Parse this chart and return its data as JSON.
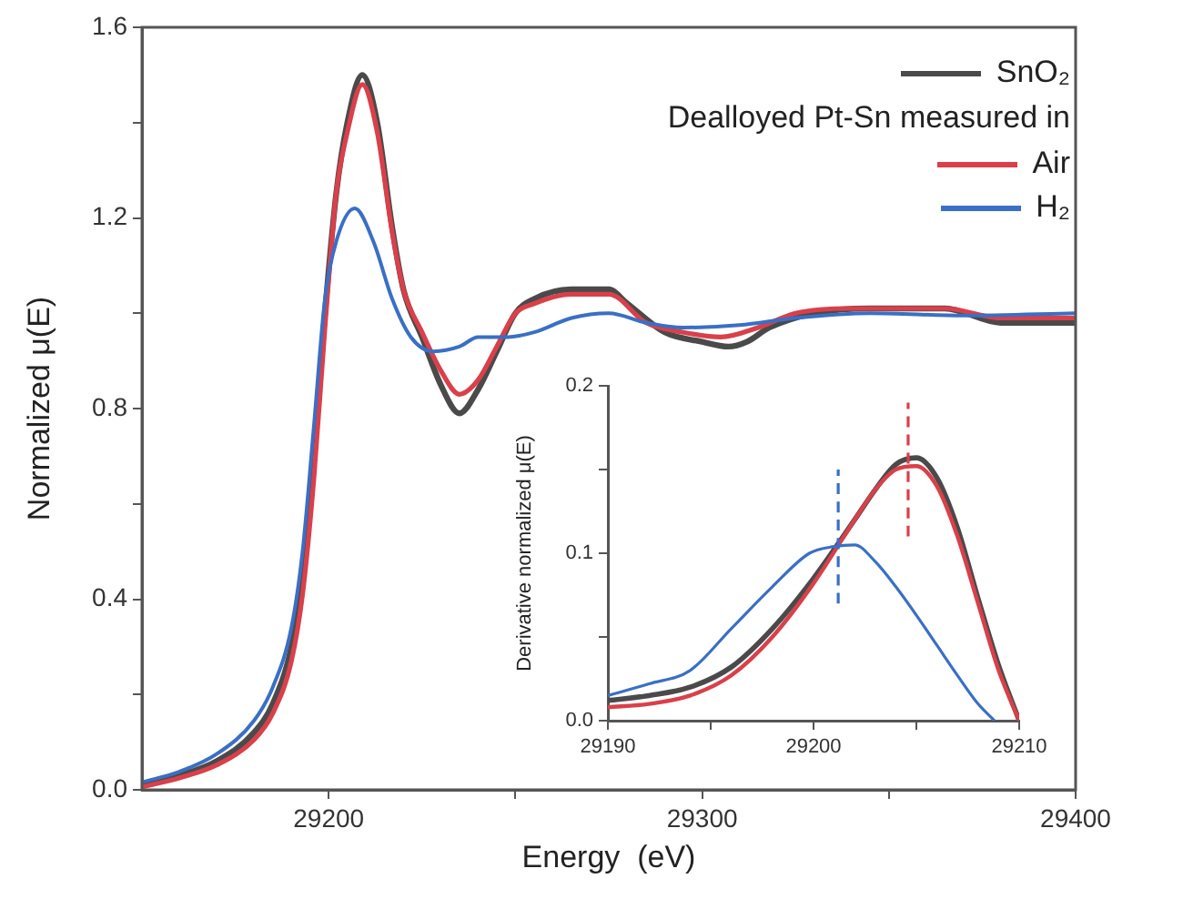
{
  "chart_data": [
    {
      "type": "line",
      "xlabel": "Energy  (eV)",
      "ylabel": "Normalized μ(E)",
      "legend_title": "Dealloyed Pt-Sn measured in",
      "legend": "top right",
      "marker": "none",
      "grid": false,
      "xlim": [
        29150,
        29400
      ],
      "xticks": [
        29200,
        {
          "value": 29250,
          "label": null
        },
        29300,
        {
          "value": 29350,
          "label": null
        },
        29400
      ],
      "ylim": [
        0,
        1.6
      ],
      "yticks": [
        {
          "value": 0,
          "label": "0.0"
        },
        {
          "value": 0.2,
          "label": null
        },
        {
          "value": 0.4,
          "label": "0.4"
        },
        {
          "value": 0.6,
          "label": null
        },
        {
          "value": 0.8,
          "label": "0.8"
        },
        {
          "value": 1.0,
          "label": null
        },
        {
          "value": 1.2,
          "label": "1.2"
        },
        {
          "value": 1.4,
          "label": null
        },
        {
          "value": 1.6,
          "label": "1.6"
        }
      ],
      "series": [
        {
          "name": "SnO₂",
          "color": "#4a4a4a",
          "x": [
            29150,
            29160,
            29170,
            29180,
            29185,
            29190,
            29193,
            29196,
            29199,
            29202,
            29205,
            29209,
            29213,
            29217,
            29220,
            29225,
            29230,
            29235,
            29240,
            29245,
            29250,
            29255,
            29265,
            29275,
            29280,
            29290,
            29300,
            29307,
            29312,
            29318,
            29330,
            29345,
            29365,
            29380,
            29400
          ],
          "values": [
            0.01,
            0.03,
            0.06,
            0.12,
            0.18,
            0.3,
            0.45,
            0.7,
            1.0,
            1.25,
            1.4,
            1.5,
            1.4,
            1.18,
            1.05,
            0.95,
            0.85,
            0.79,
            0.84,
            0.92,
            1.0,
            1.03,
            1.05,
            1.05,
            1.02,
            0.96,
            0.94,
            0.93,
            0.94,
            0.97,
            1.0,
            1.01,
            1.01,
            0.98,
            0.98
          ]
        },
        {
          "name": "Air",
          "color": "#d9404a",
          "x": [
            29150,
            29160,
            29170,
            29180,
            29185,
            29190,
            29193,
            29196,
            29199,
            29202,
            29205,
            29209,
            29213,
            29217,
            29220,
            29225,
            29230,
            29235,
            29240,
            29245,
            29250,
            29255,
            29265,
            29275,
            29285,
            29295,
            29305,
            29315,
            29325,
            29340,
            29350,
            29365,
            29380,
            29400
          ],
          "values": [
            0.006,
            0.025,
            0.052,
            0.105,
            0.16,
            0.27,
            0.41,
            0.65,
            0.97,
            1.25,
            1.38,
            1.48,
            1.38,
            1.17,
            1.05,
            0.96,
            0.88,
            0.83,
            0.86,
            0.93,
            1.0,
            1.02,
            1.04,
            1.04,
            0.98,
            0.96,
            0.95,
            0.97,
            1.0,
            1.01,
            1.01,
            1.01,
            0.99,
            0.99
          ]
        },
        {
          "name": "H₂",
          "color": "#3a6fc4",
          "x": [
            29150,
            29160,
            29170,
            29180,
            29185,
            29190,
            29193,
            29196,
            29199,
            29202,
            29207,
            29212,
            29217,
            29222,
            29228,
            29235,
            29240,
            29248,
            29255,
            29265,
            29275,
            29285,
            29295,
            29310,
            29325,
            29345,
            29370,
            29400
          ],
          "values": [
            0.016,
            0.038,
            0.075,
            0.145,
            0.215,
            0.34,
            0.5,
            0.76,
            1.03,
            1.15,
            1.22,
            1.15,
            1.03,
            0.95,
            0.92,
            0.93,
            0.95,
            0.95,
            0.96,
            0.99,
            1.0,
            0.98,
            0.97,
            0.975,
            0.99,
            1.0,
            0.995,
            1.0
          ]
        }
      ]
    },
    {
      "type": "line",
      "ylabel": "Derivative normalized μ(E)",
      "legend": false,
      "marker": "none",
      "grid": false,
      "xlim": [
        29190,
        29210
      ],
      "xticks": [
        29190,
        {
          "value": 29195,
          "label": null
        },
        29200,
        {
          "value": 29205,
          "label": null
        },
        29210
      ],
      "ylim": [
        0,
        0.2
      ],
      "yticks": [
        {
          "value": 0,
          "label": "0.0"
        },
        {
          "value": 0.05,
          "label": null
        },
        {
          "value": 0.1,
          "label": "0.1"
        },
        {
          "value": 0.15,
          "label": null
        },
        {
          "value": 0.2,
          "label": "0.2"
        }
      ],
      "series": [
        {
          "color": "#4a4a4a",
          "x": [
            29190,
            29192,
            29194,
            29196,
            29198,
            29200,
            29202,
            29203,
            29204,
            29205,
            29206,
            29207,
            29208,
            29209,
            29210
          ],
          "values": [
            0.012,
            0.015,
            0.02,
            0.032,
            0.055,
            0.085,
            0.12,
            0.138,
            0.153,
            0.157,
            0.145,
            0.115,
            0.073,
            0.033,
            0
          ]
        },
        {
          "color": "#d9404a",
          "x": [
            29190,
            29192,
            29194,
            29196,
            29198,
            29200,
            29202,
            29203,
            29204,
            29205,
            29206,
            29207,
            29208,
            29209,
            29210
          ],
          "values": [
            0.008,
            0.01,
            0.015,
            0.027,
            0.05,
            0.082,
            0.12,
            0.138,
            0.15,
            0.152,
            0.14,
            0.11,
            0.07,
            0.03,
            0
          ]
        },
        {
          "color": "#3a6fc4",
          "x": [
            29190,
            29192,
            29194,
            29196,
            29198,
            29199.8,
            29201,
            29202,
            29203,
            29204,
            29205,
            29206,
            29207,
            29208,
            29208.8
          ],
          "values": [
            0.015,
            0.022,
            0.03,
            0.055,
            0.08,
            0.1,
            0.104,
            0.105,
            0.095,
            0.08,
            0.063,
            0.045,
            0.027,
            0.01,
            0
          ]
        },
        {
          "color": "#3a6fc4",
          "line_style": "dashed",
          "x": [
            29201.2,
            29201.2
          ],
          "values": [
            0.07,
            0.15
          ]
        },
        {
          "color": "#d9404a",
          "line_style": "dashed",
          "x": [
            29204.6,
            29204.6
          ],
          "values": [
            0.11,
            0.19
          ]
        }
      ]
    }
  ]
}
